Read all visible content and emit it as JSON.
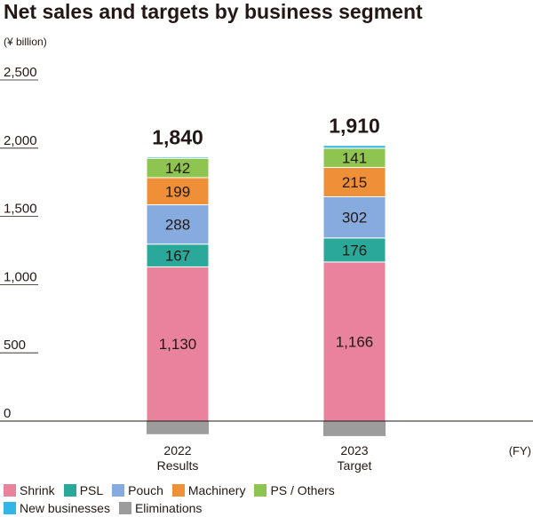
{
  "chart_data": {
    "type": "bar",
    "stacked": true,
    "title": "Net sales and targets by business segment",
    "unit_label": "(¥ billion)",
    "xlabel": "(FY)",
    "ylabel": "",
    "ylim": [
      0,
      2500
    ],
    "yticks": [
      "0",
      "500",
      "1,000",
      "1,500",
      "2,000",
      "2,500"
    ],
    "categories": [
      {
        "year": "2022",
        "label": "Results",
        "total": "1,840"
      },
      {
        "year": "2023",
        "label": "Target",
        "total": "1,910"
      }
    ],
    "series": [
      {
        "name": "Shrink",
        "color": "#e8839b",
        "values": [
          1130,
          1166
        ],
        "labels": [
          "1,130",
          "1,166"
        ]
      },
      {
        "name": "PSL",
        "color": "#2aa99a",
        "values": [
          167,
          176
        ],
        "labels": [
          "167",
          "176"
        ]
      },
      {
        "name": "Pouch",
        "color": "#86abdf",
        "values": [
          288,
          302
        ],
        "labels": [
          "288",
          "302"
        ]
      },
      {
        "name": "Machinery",
        "color": "#ef9038",
        "values": [
          199,
          215
        ],
        "labels": [
          "199",
          "215"
        ]
      },
      {
        "name": "PS / Others",
        "color": "#8ec550",
        "values": [
          142,
          141
        ],
        "labels": [
          "142",
          "141"
        ]
      },
      {
        "name": "New businesses",
        "color": "#31b6e7",
        "values": [
          10,
          20
        ],
        "labels": [
          "",
          ""
        ]
      },
      {
        "name": "Eliminations",
        "color": "#9c9c9c",
        "values": [
          -96,
          -110
        ],
        "labels": [
          "",
          ""
        ]
      }
    ],
    "legend_position": "bottom-left",
    "grid": false
  }
}
